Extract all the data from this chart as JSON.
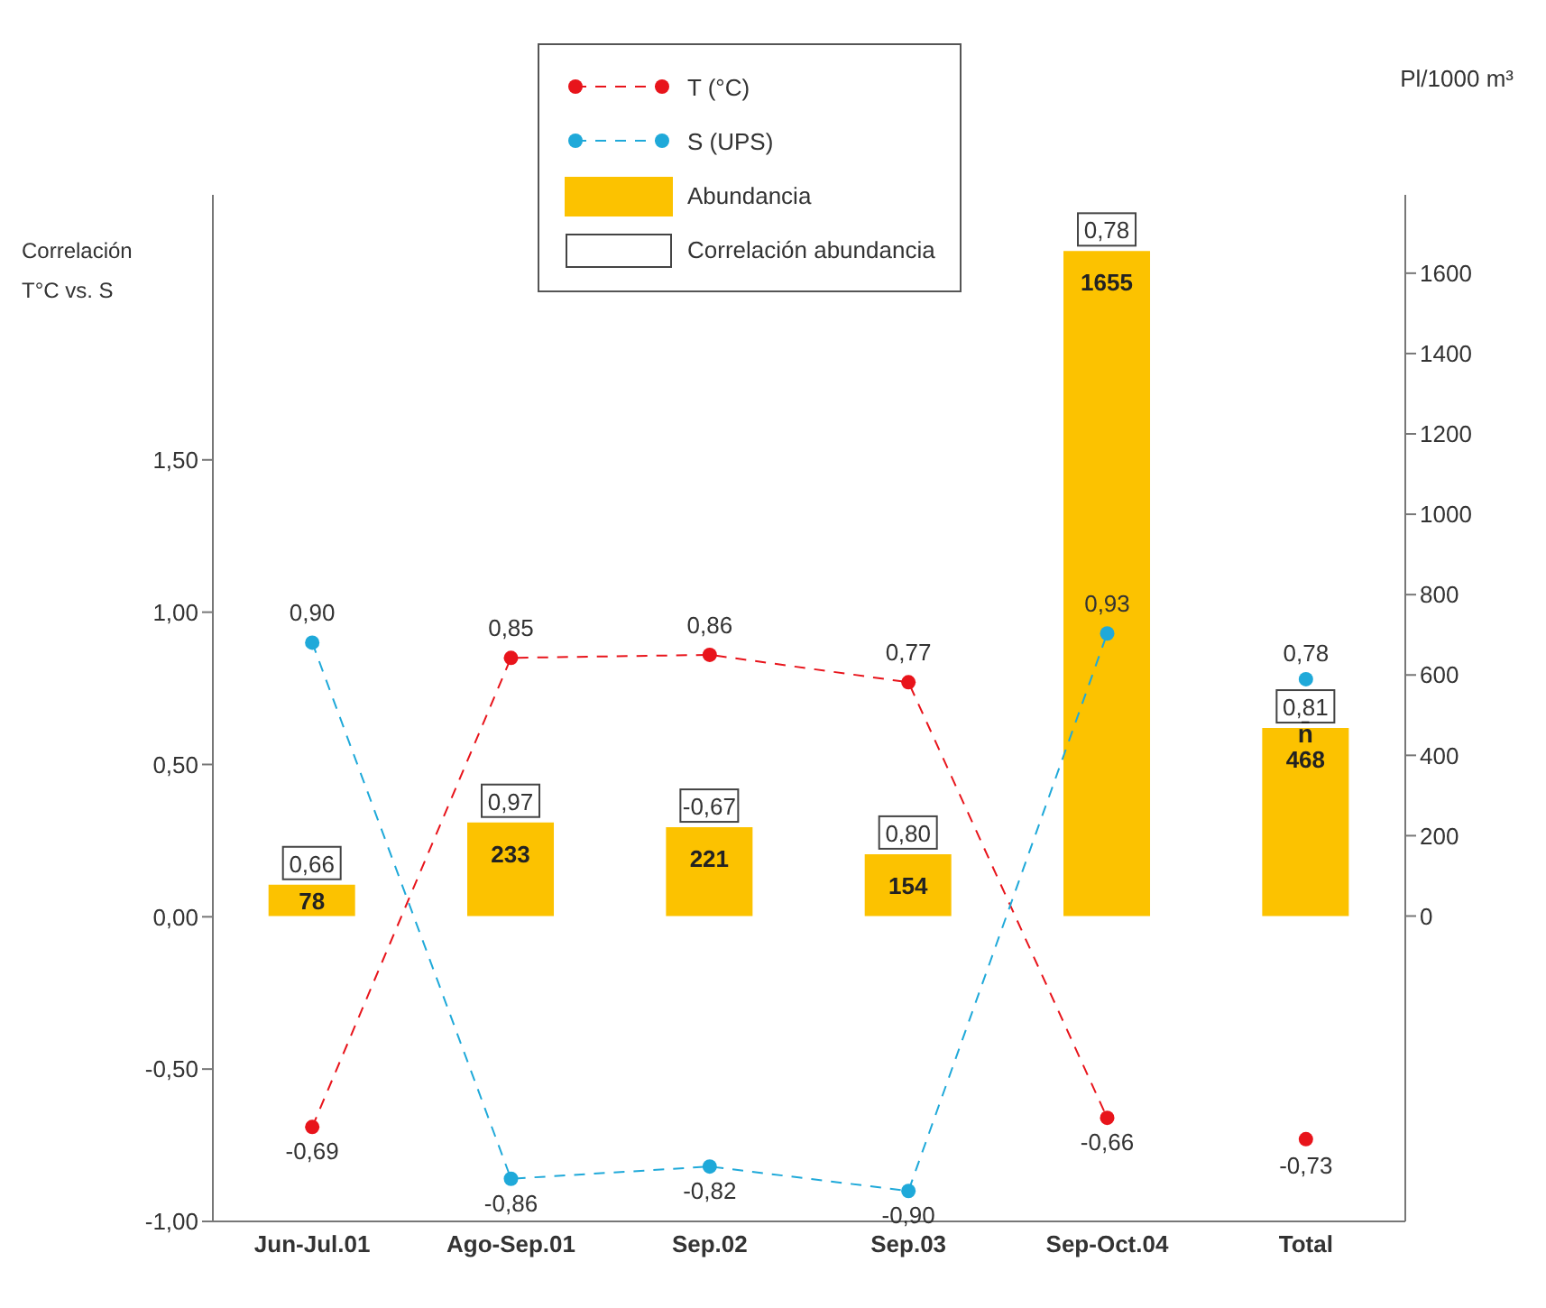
{
  "chart_data": {
    "type": "line",
    "ylabel": "Correlación\nT°C vs. S",
    "y2label": "Pl/1000 m³",
    "categories": [
      "Jun-Jul.01",
      "Ago-Sep.01",
      "Sep.02",
      "Sep.03",
      "Sep-Oct.04",
      "Total"
    ],
    "ylim": [
      -1,
      2.37
    ],
    "yticks": [
      {
        "value": -1,
        "label": "-1,00"
      },
      {
        "value": -0.5,
        "label": "-0,50"
      },
      {
        "value": 0,
        "label": "0,00"
      },
      {
        "value": 0.5,
        "label": "0,50"
      },
      {
        "value": 1,
        "label": "1,00"
      },
      {
        "value": 1.5,
        "label": "1,50"
      }
    ],
    "y2lim": [
      -760,
      1795
    ],
    "y2ticks": [
      0,
      200,
      400,
      600,
      800,
      1000,
      1200,
      1400,
      1600
    ],
    "marker": "circle",
    "line_style": "dashed",
    "legend": "top",
    "grid": false,
    "series": [
      {
        "name": "T (°C)",
        "color": "#e8141b",
        "values": [
          -0.69,
          0.85,
          0.86,
          0.77,
          -0.66,
          null
        ],
        "value_labels": [
          "-0,69",
          "0,85",
          "0,86",
          "0,77",
          "-0,66",
          null
        ]
      },
      {
        "name": "S (UPS)",
        "color": "#1fa9d9",
        "values": [
          0.9,
          -0.86,
          -0.82,
          -0.9,
          0.93,
          null
        ],
        "value_labels": [
          "0,90",
          "-0,86",
          "-0,82",
          "-0,90",
          "0,93",
          null
        ]
      },
      {
        "type": "scatter",
        "color": "#e8141b",
        "x": [
          "Total"
        ],
        "values": [
          -0.73
        ],
        "value_labels": [
          "-0,73"
        ]
      },
      {
        "type": "scatter",
        "color": "#1fa9d9",
        "x": [
          "Total"
        ],
        "values": [
          0.78
        ],
        "value_labels": [
          "0,78"
        ]
      },
      {
        "name": "Abundancia",
        "type": "bar",
        "axis": "y2",
        "color": "#fcc200",
        "values": [
          78,
          233,
          221,
          154,
          1655,
          468
        ],
        "data_labels": true
      }
    ],
    "annotations": [
      "Correlación abundancia",
      {
        "text": "0,66",
        "x": "Jun-Jul.01"
      },
      {
        "text": "0,97",
        "x": "Ago-Sep.01"
      },
      {
        "text": "-0,67",
        "x": "Sep.02"
      },
      {
        "text": "0,80",
        "x": "Sep.03"
      },
      {
        "text": "0,78",
        "x": "Sep-Oct.04"
      },
      {
        "text": "0,81",
        "x": "Total"
      },
      {
        "text": "n̄",
        "x": "Total"
      }
    ]
  }
}
